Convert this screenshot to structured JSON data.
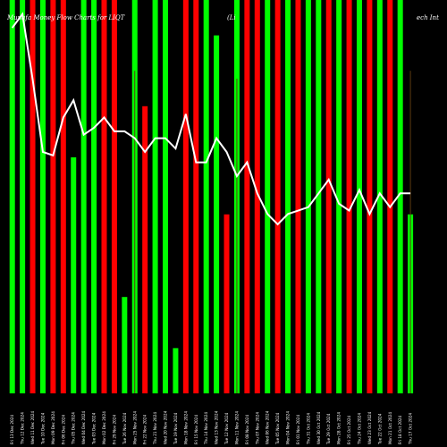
{
  "chart_data": {
    "type": "bar",
    "title": "Munafa Money Flow Charts for LIQT",
    "title_right": "(Li",
    "title_far_right": "ech Int",
    "colors": {
      "up": "#00ff00",
      "down": "#ff0000",
      "line": "#ffffff",
      "background": "#000000",
      "thin": "#5a3a10"
    },
    "categories": [
      "Fri 13 Dec 2024",
      "Thu 12 Dec 2024",
      "Wed 11 Dec 2024",
      "Tue 10 Dec 2024",
      "Mon 09 Dec 2024",
      "Fri 06 Dec 2024",
      "Thu 05 Dec 2024",
      "Wed 04 Dec 2024",
      "Tue 03 Dec 2024",
      "Mon 02 Dec 2024",
      "Fri 29 Nov 2024",
      "Tue 26 Nov 2024",
      "Mon 25 Nov 2024",
      "Fri 22 Nov 2024",
      "Thu 21 Nov 2024",
      "Wed 20 Nov 2024",
      "Tue 19 Nov 2024",
      "Mon 18 Nov 2024",
      "Fri 15 Nov 2024",
      "Thu 14 Nov 2024",
      "Wed 13 Nov 2024",
      "Tue 12 Nov 2024",
      "Mon 11 Nov 2024",
      "Fri 08 Nov 2024",
      "Thu 07 Nov 2024",
      "Wed 06 Nov 2024",
      "Tue 05 Nov 2024",
      "Mon 04 Nov 2024",
      "Fri 01 Nov 2024",
      "Thu 31 Oct 2024",
      "Wed 30 Oct 2024",
      "Tue 29 Oct 2024",
      "Mon 28 Oct 2024",
      "Fri 25 Oct 2024",
      "Thu 24 Oct 2024",
      "Wed 23 Oct 2024",
      "Tue 22 Oct 2024",
      "Mon 21 Oct 2024",
      "Fri 18 Oct 2024",
      "Thu 17 Oct 2024"
    ],
    "bars": [
      {
        "color": "up",
        "value": 100,
        "thin": false
      },
      {
        "color": "up",
        "value": 100,
        "thin": false
      },
      {
        "color": "down",
        "value": 100,
        "thin": false
      },
      {
        "color": "up",
        "value": 100,
        "thin": false
      },
      {
        "color": "down",
        "value": 100,
        "thin": false
      },
      {
        "color": "down",
        "value": 100,
        "thin": false
      },
      {
        "color": "up",
        "value": 60,
        "thin": false
      },
      {
        "color": "up",
        "value": 100,
        "thin": false
      },
      {
        "color": "up",
        "value": 100,
        "thin": false
      },
      {
        "color": "down",
        "value": 100,
        "thin": false
      },
      {
        "color": "down",
        "value": 100,
        "thin": false
      },
      {
        "color": "up",
        "value": 24.5,
        "thin": false
      },
      {
        "color": "up",
        "value": 100,
        "thin": false
      },
      {
        "color": "down",
        "value": 73,
        "thin": false
      },
      {
        "color": "up",
        "value": 100,
        "thin": false
      },
      {
        "color": "up",
        "value": 100,
        "thin": false
      },
      {
        "color": "up",
        "value": 11.5,
        "thin": false
      },
      {
        "color": "down",
        "value": 100,
        "thin": false
      },
      {
        "color": "down",
        "value": 100,
        "thin": false
      },
      {
        "color": "up",
        "value": 100,
        "thin": false
      },
      {
        "color": "up",
        "value": 91,
        "thin": false
      },
      {
        "color": "down",
        "value": 45.5,
        "thin": false
      },
      {
        "color": "up",
        "value": 100,
        "thin": false
      },
      {
        "color": "down",
        "value": 100,
        "thin": false
      },
      {
        "color": "down",
        "value": 100,
        "thin": false
      },
      {
        "color": "up",
        "value": 100,
        "thin": false
      },
      {
        "color": "down",
        "value": 100,
        "thin": false
      },
      {
        "color": "up",
        "value": 100,
        "thin": false
      },
      {
        "color": "down",
        "value": 100,
        "thin": false
      },
      {
        "color": "up",
        "value": 100,
        "thin": false
      },
      {
        "color": "up",
        "value": 100,
        "thin": false
      },
      {
        "color": "down",
        "value": 100,
        "thin": false
      },
      {
        "color": "up",
        "value": 100,
        "thin": false
      },
      {
        "color": "down",
        "value": 100,
        "thin": false
      },
      {
        "color": "up",
        "value": 100,
        "thin": false
      },
      {
        "color": "down",
        "value": 100,
        "thin": false
      },
      {
        "color": "up",
        "value": 100,
        "thin": false
      },
      {
        "color": "down",
        "value": 100,
        "thin": false
      },
      {
        "color": "up",
        "value": 100,
        "thin": false
      },
      {
        "color": "up",
        "value": 45.5,
        "thin": false
      }
    ],
    "thin_lines": [
      {
        "index": 12,
        "value": 82
      },
      {
        "index": 22,
        "value": 80
      },
      {
        "index": 39,
        "value": 82
      }
    ],
    "line_series": [
      106,
      110,
      91,
      70,
      69,
      80,
      85,
      75,
      77,
      80,
      76,
      76,
      74,
      70,
      74,
      74,
      71,
      81,
      67,
      67,
      74,
      70,
      63,
      67,
      58,
      52,
      49,
      52,
      53,
      54,
      58,
      62,
      55,
      53,
      59,
      52,
      58,
      54,
      58,
      58
    ],
    "ylim_bars": [
      0,
      100
    ],
    "ylim_line": [
      0,
      112
    ]
  }
}
